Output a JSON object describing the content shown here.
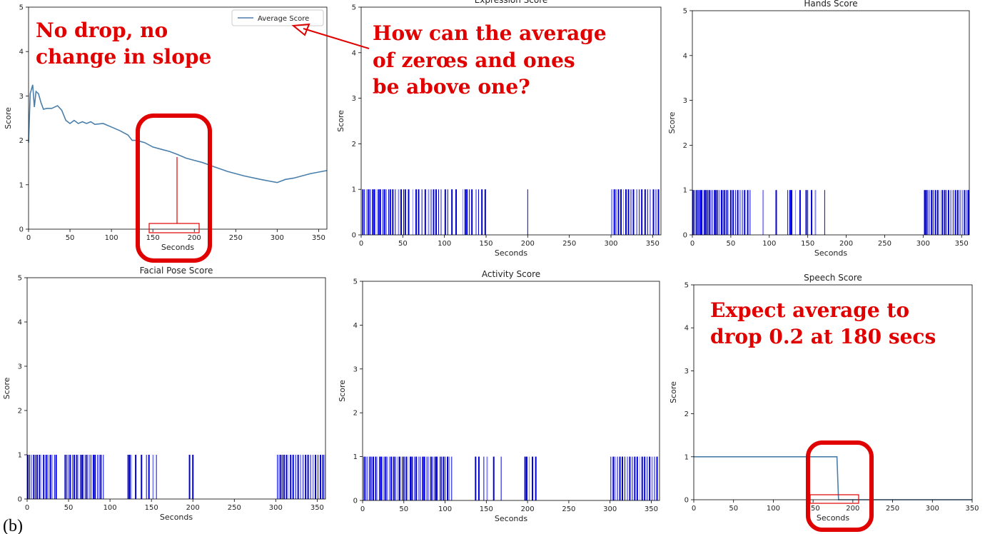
{
  "panel_label": "(b)",
  "chart_data": [
    {
      "type": "line",
      "title": "",
      "xlabel": "Seconds",
      "ylabel": "Score",
      "xlim": [
        0,
        360
      ],
      "ylim": [
        0,
        5
      ],
      "xticks": [
        0,
        50,
        100,
        150,
        200,
        250,
        300,
        350
      ],
      "yticks": [
        0,
        1,
        2,
        3,
        4,
        5
      ],
      "legend": "top-right",
      "series": [
        {
          "name": "Average Score",
          "color": "#4a7fab",
          "x": [
            0,
            2,
            5,
            7,
            9,
            12,
            15,
            18,
            22,
            28,
            35,
            40,
            45,
            50,
            55,
            60,
            65,
            70,
            75,
            80,
            90,
            100,
            110,
            120,
            125,
            130,
            140,
            150,
            160,
            170,
            180,
            190,
            200,
            210,
            220,
            240,
            260,
            280,
            300,
            310,
            320,
            340,
            360
          ],
          "y": [
            1.95,
            3.05,
            3.25,
            2.75,
            3.1,
            3.05,
            2.85,
            2.7,
            2.72,
            2.72,
            2.78,
            2.68,
            2.45,
            2.38,
            2.45,
            2.38,
            2.42,
            2.38,
            2.42,
            2.36,
            2.38,
            2.3,
            2.22,
            2.12,
            2.0,
            2.0,
            1.95,
            1.85,
            1.8,
            1.75,
            1.68,
            1.6,
            1.55,
            1.5,
            1.43,
            1.3,
            1.2,
            1.12,
            1.05,
            1.12,
            1.15,
            1.25,
            1.32
          ]
        }
      ]
    },
    {
      "type": "bar",
      "title": "Expression Score",
      "xlabel": "Seconds",
      "ylabel": "Score",
      "xlim": [
        0,
        360
      ],
      "ylim": [
        0,
        5
      ],
      "xticks": [
        0,
        50,
        100,
        150,
        200,
        250,
        300,
        350
      ],
      "yticks": [
        0,
        1,
        2,
        3,
        4,
        5
      ],
      "bar_color": "#0000dd",
      "x": [
        2,
        4,
        7,
        9,
        11,
        14,
        16,
        19,
        21,
        23,
        26,
        28,
        30,
        33,
        35,
        38,
        41,
        45,
        48,
        51,
        53,
        57,
        62,
        66,
        69,
        73,
        77,
        81,
        84,
        87,
        90,
        93,
        96,
        101,
        104,
        109,
        114,
        122,
        125,
        127,
        130,
        133,
        138,
        141,
        145,
        149,
        200,
        301,
        304,
        306,
        309,
        312,
        315,
        318,
        321,
        324,
        327,
        331,
        334,
        337,
        341,
        344,
        347,
        351,
        354,
        357
      ],
      "values": [
        1,
        1,
        1,
        1,
        1,
        1,
        1,
        1,
        1,
        1,
        1,
        1,
        1,
        1,
        1,
        1,
        1,
        1,
        1,
        1,
        1,
        1,
        1,
        1,
        1,
        1,
        1,
        1,
        1,
        1,
        1,
        1,
        1,
        1,
        1,
        1,
        1,
        1,
        1,
        1,
        1,
        1,
        1,
        1,
        1,
        1,
        1,
        1,
        1,
        1,
        1,
        1,
        1,
        1,
        1,
        1,
        1,
        1,
        1,
        1,
        1,
        1,
        1,
        1,
        1,
        1
      ]
    },
    {
      "type": "bar",
      "title": "Hands Score",
      "xlabel": "Seconds",
      "ylabel": "Score",
      "xlim": [
        0,
        360
      ],
      "ylim": [
        0,
        5
      ],
      "xticks": [
        0,
        50,
        100,
        150,
        200,
        250,
        300,
        350
      ],
      "yticks": [
        0,
        1,
        2,
        3,
        4,
        5
      ],
      "bar_color": "#0000dd",
      "x": [
        1,
        3,
        5,
        6,
        8,
        10,
        12,
        14,
        16,
        18,
        20,
        22,
        24,
        26,
        29,
        31,
        33,
        35,
        38,
        40,
        42,
        45,
        47,
        50,
        53,
        56,
        59,
        62,
        65,
        68,
        72,
        75,
        92,
        109,
        124,
        127,
        129,
        134,
        140,
        148,
        150,
        155,
        160,
        172,
        302,
        304,
        306,
        308,
        311,
        313,
        316,
        319,
        322,
        325,
        328,
        330,
        333,
        336,
        339,
        342,
        345,
        348,
        351,
        354,
        357,
        359
      ],
      "values": [
        1,
        1,
        1,
        1,
        1,
        1,
        1,
        1,
        1,
        1,
        1,
        1,
        1,
        1,
        1,
        1,
        1,
        1,
        1,
        1,
        1,
        1,
        1,
        1,
        1,
        1,
        1,
        1,
        1,
        1,
        1,
        1,
        1,
        1,
        1,
        1,
        1,
        1,
        1,
        1,
        1,
        1,
        1,
        1,
        1,
        1,
        1,
        1,
        1,
        1,
        1,
        1,
        1,
        1,
        1,
        1,
        1,
        1,
        1,
        1,
        1,
        1,
        1,
        1,
        1,
        1
      ]
    },
    {
      "type": "bar",
      "title": "Facial Pose Score",
      "xlabel": "Seconds",
      "ylabel": "Score",
      "xlim": [
        0,
        360
      ],
      "ylim": [
        0,
        5
      ],
      "xticks": [
        0,
        50,
        100,
        150,
        200,
        250,
        300,
        350
      ],
      "yticks": [
        0,
        1,
        2,
        3,
        4,
        5
      ],
      "bar_color": "#0000dd",
      "x": [
        1,
        3,
        5,
        8,
        10,
        12,
        15,
        17,
        20,
        23,
        25,
        28,
        30,
        33,
        35,
        46,
        48,
        50,
        52,
        55,
        57,
        60,
        62,
        65,
        67,
        70,
        72,
        75,
        77,
        80,
        82,
        85,
        87,
        89,
        92,
        122,
        124,
        126,
        131,
        138,
        144,
        147,
        152,
        156,
        196,
        200,
        302,
        304,
        306,
        308,
        310,
        313,
        315,
        318,
        321,
        324,
        327,
        330,
        333,
        336,
        339,
        342,
        345,
        348,
        351,
        354,
        357,
        359
      ],
      "values": [
        1,
        1,
        1,
        1,
        1,
        1,
        1,
        1,
        1,
        1,
        1,
        1,
        1,
        1,
        1,
        1,
        1,
        1,
        1,
        1,
        1,
        1,
        1,
        1,
        1,
        1,
        1,
        1,
        1,
        1,
        1,
        1,
        1,
        1,
        1,
        1,
        1,
        1,
        1,
        1,
        1,
        1,
        1,
        1,
        1,
        1,
        1,
        1,
        1,
        1,
        1,
        1,
        1,
        1,
        1,
        1,
        1,
        1,
        1,
        1,
        1,
        1,
        1,
        1,
        1,
        1,
        1,
        1
      ]
    },
    {
      "type": "bar",
      "title": "Activity Score",
      "xlabel": "Seconds",
      "ylabel": "Score",
      "xlim": [
        0,
        360
      ],
      "ylim": [
        0,
        5
      ],
      "xticks": [
        0,
        50,
        100,
        150,
        200,
        250,
        300,
        350
      ],
      "yticks": [
        0,
        1,
        2,
        3,
        4,
        5
      ],
      "bar_color": "#0000dd",
      "x": [
        2,
        4,
        6,
        9,
        11,
        13,
        16,
        18,
        21,
        23,
        26,
        28,
        30,
        33,
        35,
        38,
        40,
        43,
        45,
        48,
        50,
        53,
        55,
        58,
        60,
        63,
        65,
        68,
        70,
        73,
        75,
        78,
        80,
        83,
        85,
        88,
        90,
        93,
        95,
        98,
        100,
        103,
        105,
        108,
        137,
        141,
        147,
        151,
        159,
        168,
        197,
        199,
        202,
        206,
        210,
        301,
        304,
        306,
        309,
        312,
        315,
        318,
        321,
        324,
        327,
        330,
        333,
        336,
        339,
        342,
        345,
        348,
        351,
        354,
        357
      ],
      "values": [
        1,
        1,
        1,
        1,
        1,
        1,
        1,
        1,
        1,
        1,
        1,
        1,
        1,
        1,
        1,
        1,
        1,
        1,
        1,
        1,
        1,
        1,
        1,
        1,
        1,
        1,
        1,
        1,
        1,
        1,
        1,
        1,
        1,
        1,
        1,
        1,
        1,
        1,
        1,
        1,
        1,
        1,
        1,
        1,
        1,
        1,
        1,
        1,
        1,
        1,
        1,
        1,
        1,
        1,
        1,
        1,
        1,
        1,
        1,
        1,
        1,
        1,
        1,
        1,
        1,
        1,
        1,
        1,
        1,
        1,
        1,
        1,
        1,
        1,
        1
      ]
    },
    {
      "type": "line",
      "title": "Speech Score",
      "xlabel": "Seconds",
      "ylabel": "Score",
      "xlim": [
        0,
        350
      ],
      "ylim": [
        0,
        5
      ],
      "xticks": [
        0,
        50,
        100,
        150,
        200,
        250,
        300,
        350
      ],
      "yticks": [
        0,
        1,
        2,
        3,
        4,
        5
      ],
      "series": [
        {
          "color": "#4a7fab",
          "x": [
            0,
            180,
            182,
            350
          ],
          "y": [
            1,
            1,
            0,
            0
          ]
        }
      ]
    }
  ],
  "annotations": {
    "note1": [
      "No drop, no",
      "change in slope"
    ],
    "note2": [
      "How can the average",
      "of zerœs and ones",
      "be above one?"
    ],
    "note3": [
      "Expect average to",
      "drop 0.2 at 180 secs"
    ]
  },
  "colors": {
    "annotation": "#e00000",
    "line": "#4a7fab",
    "bar": "#0000dd"
  }
}
